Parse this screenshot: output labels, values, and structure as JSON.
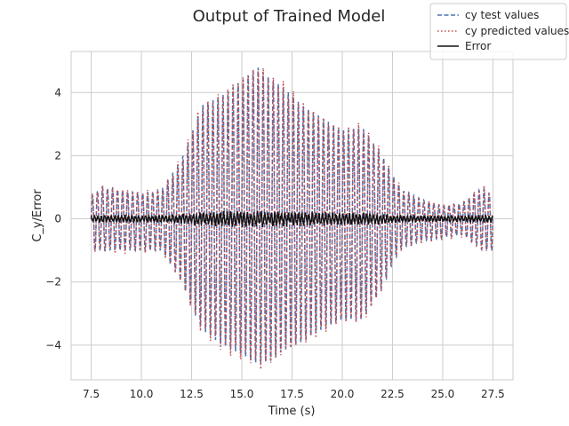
{
  "chart_data": {
    "type": "line",
    "title": "Output of Trained Model",
    "xlabel": "Time (s)",
    "ylabel": "C_y/Error",
    "xlim": [
      6.5,
      28.5
    ],
    "ylim": [
      -5.1,
      5.3
    ],
    "xticks": [
      7.5,
      10.0,
      12.5,
      15.0,
      17.5,
      20.0,
      22.5,
      25.0,
      27.5
    ],
    "xtick_labels": [
      "7.5",
      "10.0",
      "12.5",
      "15.0",
      "17.5",
      "20.0",
      "22.5",
      "25.0",
      "27.5"
    ],
    "yticks": [
      -4,
      -2,
      0,
      2,
      4
    ],
    "ytick_labels": [
      "−4",
      "−2",
      "0",
      "2",
      "4"
    ],
    "grid": true,
    "legend_position": "top-right",
    "series": [
      {
        "name": "cy test values",
        "color": "#4c72b0",
        "style": "dashed"
      },
      {
        "name": "cy predicted values",
        "color": "#c44e52",
        "style": "dotted"
      },
      {
        "name": "Error",
        "color": "#111111",
        "style": "solid"
      }
    ],
    "oscillation": {
      "x_start": 7.5,
      "x_end": 27.5,
      "period": 0.25,
      "envelope": {
        "x": [
          7.5,
          8.0,
          9.0,
          10.0,
          11.0,
          11.5,
          12.0,
          12.5,
          13.0,
          14.0,
          15.0,
          15.8,
          16.5,
          17.0,
          18.0,
          19.0,
          20.0,
          21.0,
          22.0,
          22.5,
          23.0,
          24.0,
          25.0,
          26.0,
          27.0,
          27.5
        ],
        "upper": [
          0.7,
          1.0,
          0.9,
          0.8,
          0.9,
          1.4,
          1.9,
          2.7,
          3.6,
          3.9,
          4.4,
          4.8,
          4.4,
          4.2,
          3.6,
          3.2,
          2.8,
          2.9,
          2.0,
          1.4,
          0.9,
          0.6,
          0.4,
          0.5,
          1.0,
          0.7
        ],
        "lower": [
          -1.0,
          -1.0,
          -1.0,
          -1.0,
          -1.0,
          -1.5,
          -2.0,
          -2.8,
          -3.5,
          -4.0,
          -4.3,
          -4.6,
          -4.5,
          -4.2,
          -3.9,
          -3.5,
          -3.2,
          -3.2,
          -2.2,
          -1.4,
          -0.9,
          -0.7,
          -0.6,
          -0.5,
          -1.0,
          -1.0
        ]
      },
      "error_amplitude": 0.18
    }
  }
}
